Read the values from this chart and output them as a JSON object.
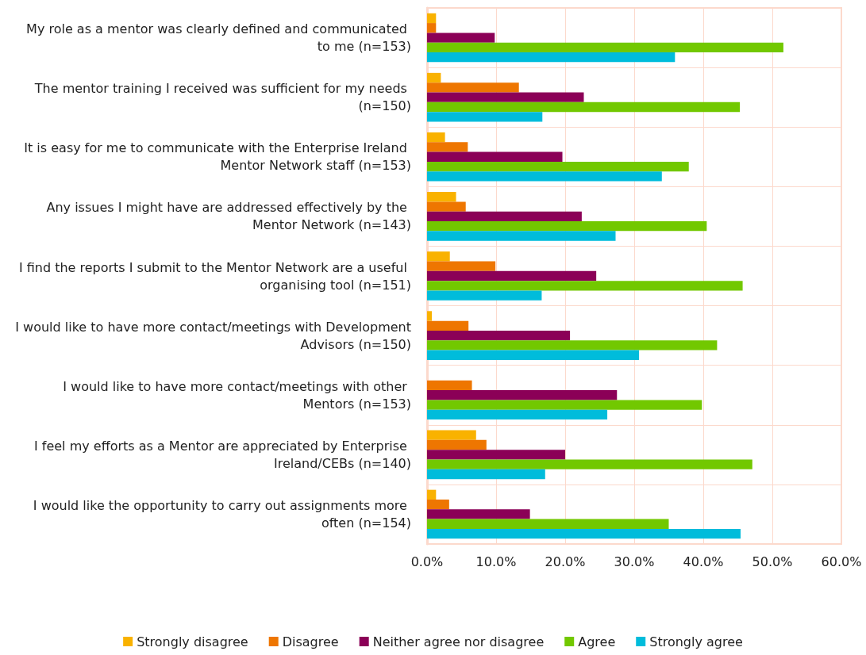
{
  "chart_data": {
    "type": "bar",
    "orientation": "horizontal",
    "categories": [
      "My role as a mentor was clearly defined and communicated to me (n=153)",
      "The mentor training I received was sufficient for my needs (n=150)",
      "It is easy for me to communicate with the Enterprise Ireland Mentor Network staff (n=153)",
      "Any issues I might have are addressed effectively by the Mentor Network (n=143)",
      "I find the reports I submit to the Mentor Network are a useful organising tool (n=151)",
      "I would like to have more contact/meetings with Development Advisors (n=150)",
      "I would like to have more contact/meetings with other Mentors (n=153)",
      "I feel my efforts as a Mentor are appreciated by Enterprise Ireland/CEBs (n=140)",
      "I would like the opportunity to carry out assignments more often (n=154)"
    ],
    "series": [
      {
        "name": "Strongly disagree",
        "color": "#f9b200",
        "values": [
          1.3,
          2.0,
          2.6,
          4.2,
          3.3,
          0.7,
          0,
          7.1,
          1.3
        ]
      },
      {
        "name": "Disagree",
        "color": "#ee7601",
        "values": [
          1.3,
          13.3,
          5.9,
          5.6,
          9.9,
          6.0,
          6.5,
          8.6,
          3.2
        ]
      },
      {
        "name": "Neither agree nor disagree",
        "color": "#8b0057",
        "values": [
          9.8,
          22.7,
          19.6,
          22.4,
          24.5,
          20.7,
          27.5,
          20.0,
          14.9
        ]
      },
      {
        "name": "Agree",
        "color": "#72c800",
        "values": [
          51.6,
          45.3,
          37.9,
          40.5,
          45.7,
          42.0,
          39.8,
          47.1,
          35.0
        ]
      },
      {
        "name": "Strongly agree",
        "color": "#00bcdb",
        "values": [
          35.9,
          16.7,
          34.0,
          27.3,
          16.6,
          30.7,
          26.1,
          17.1,
          45.4
        ]
      }
    ],
    "xlim": [
      0,
      60
    ],
    "xticks": [
      {
        "value": 0,
        "label": "0.0%"
      },
      {
        "value": 10,
        "label": "10.0%"
      },
      {
        "value": 20,
        "label": "20.0%"
      },
      {
        "value": 30,
        "label": "30.0%"
      },
      {
        "value": 40,
        "label": "40.0%"
      },
      {
        "value": 50,
        "label": "50.0%"
      },
      {
        "value": 60,
        "label": "60.0%"
      }
    ],
    "grid": true,
    "legend": "bottom"
  }
}
